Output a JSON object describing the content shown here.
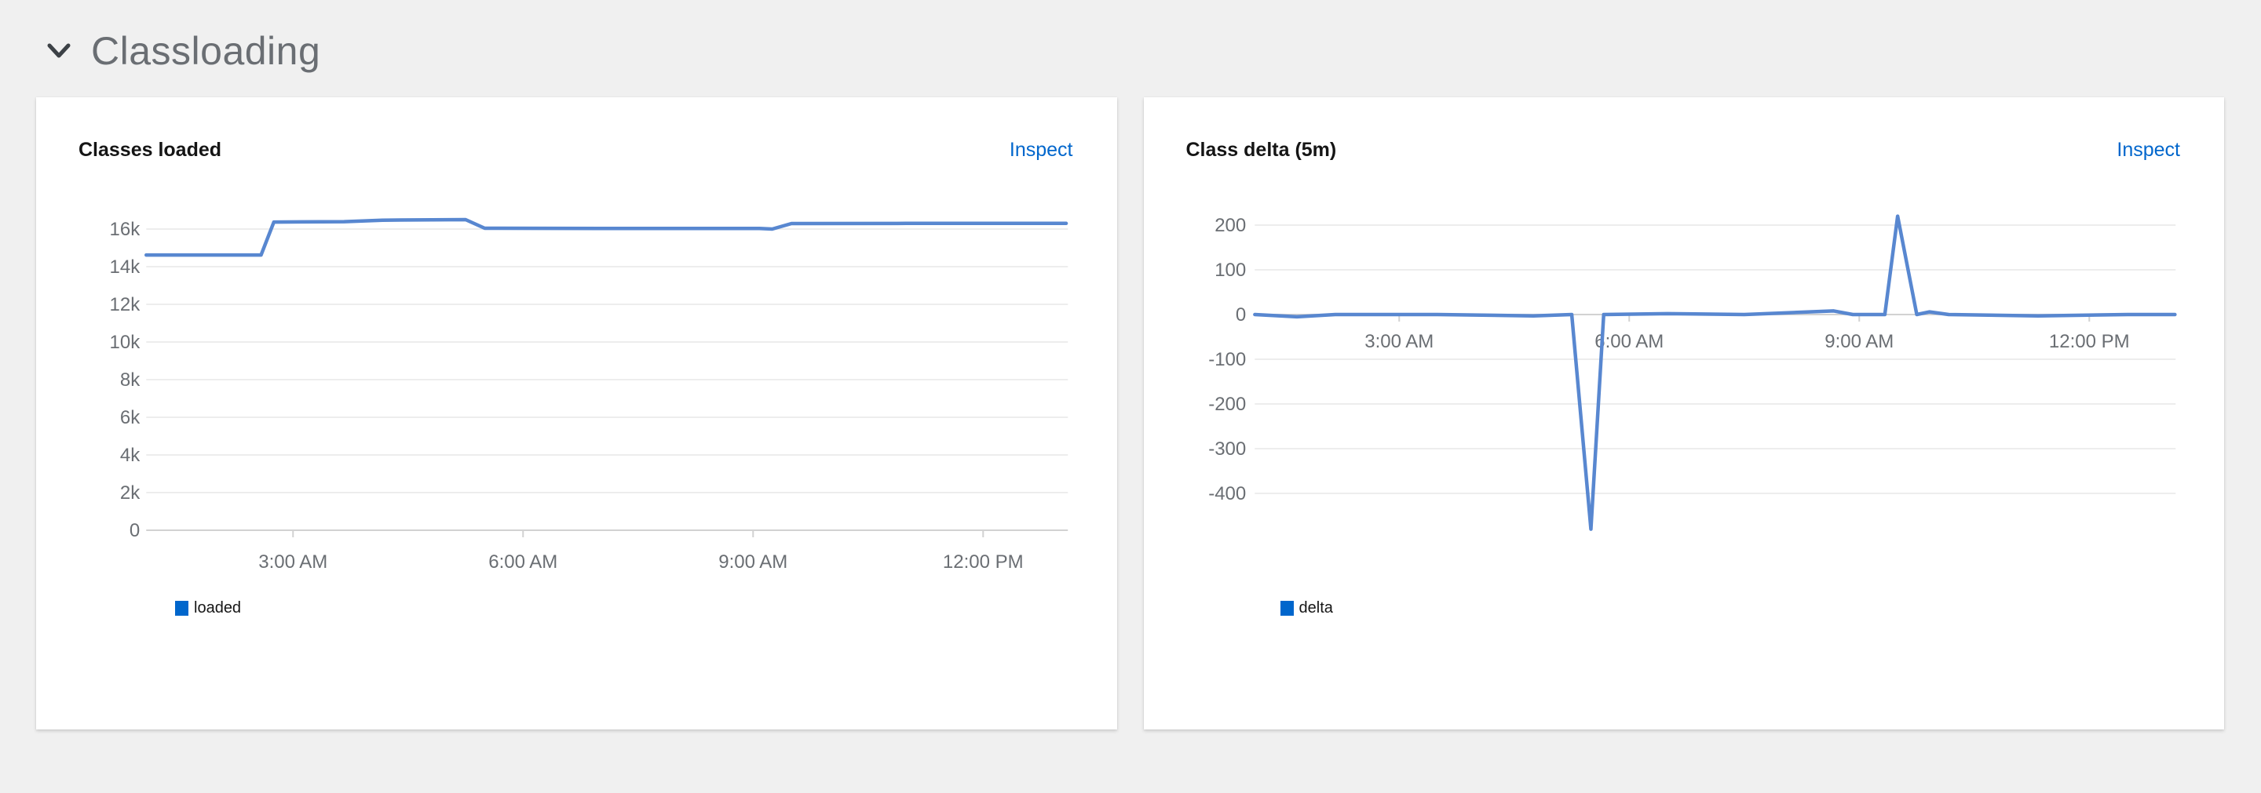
{
  "section": {
    "title": "Classloading",
    "state": "expanded"
  },
  "cards": [
    {
      "title": "Classes loaded",
      "inspect_label": "Inspect",
      "legend": [
        {
          "label": "loaded",
          "color": "#0066cc"
        }
      ]
    },
    {
      "title": "Class delta (5m)",
      "inspect_label": "Inspect",
      "legend": [
        {
          "label": "delta",
          "color": "#0066cc"
        }
      ]
    }
  ],
  "colors": {
    "page_background": "#f0f0f0",
    "card_background": "#ffffff",
    "accent_link": "#0066cc",
    "line_stroke": "#5887d0",
    "gridline": "#ededed",
    "axis_line": "#d2d2d2",
    "tick_text": "#6a6e73",
    "section_title_text": "#6a6e73",
    "chart_title_text": "#151515"
  },
  "chart_data": [
    {
      "type": "line",
      "title": "Classes loaded",
      "xlabel": "",
      "ylabel": "",
      "x_range": [
        "01:05",
        "13:05"
      ],
      "ylim": [
        0,
        16600
      ],
      "grid": "horizontal",
      "legend_position": "bottom-left",
      "yticks": [
        {
          "value": 16000,
          "label": "16k"
        },
        {
          "value": 14000,
          "label": "14k"
        },
        {
          "value": 12000,
          "label": "12k"
        },
        {
          "value": 10000,
          "label": "10k"
        },
        {
          "value": 8000,
          "label": "8k"
        },
        {
          "value": 6000,
          "label": "6k"
        },
        {
          "value": 4000,
          "label": "4k"
        },
        {
          "value": 2000,
          "label": "2k"
        },
        {
          "value": 0,
          "label": "0"
        }
      ],
      "xticks": [
        {
          "time": "03:00",
          "label": "3:00 AM"
        },
        {
          "time": "06:00",
          "label": "6:00 AM"
        },
        {
          "time": "09:00",
          "label": "9:00 AM"
        },
        {
          "time": "12:00",
          "label": "12:00 PM"
        }
      ],
      "series": [
        {
          "name": "loaded",
          "color": "#5887d0",
          "points": [
            [
              "01:05",
              14620
            ],
            [
              "02:35",
              14620
            ],
            [
              "02:45",
              16370
            ],
            [
              "03:40",
              16390
            ],
            [
              "04:10",
              16470
            ],
            [
              "05:15",
              16500
            ],
            [
              "05:30",
              16040
            ],
            [
              "07:30",
              16030
            ],
            [
              "09:05",
              16030
            ],
            [
              "09:15",
              16000
            ],
            [
              "09:30",
              16290
            ],
            [
              "11:00",
              16300
            ],
            [
              "13:05",
              16300
            ]
          ]
        }
      ]
    },
    {
      "type": "line",
      "title": "Class delta (5m)",
      "xlabel": "",
      "ylabel": "",
      "x_range": [
        "01:07",
        "13:07"
      ],
      "ylim": [
        -500,
        230
      ],
      "grid": "horizontal",
      "legend_position": "bottom-left",
      "yticks": [
        {
          "value": 200,
          "label": "200"
        },
        {
          "value": 100,
          "label": "100"
        },
        {
          "value": 0,
          "label": "0"
        },
        {
          "value": -100,
          "label": "-100"
        },
        {
          "value": -200,
          "label": "-200"
        },
        {
          "value": -300,
          "label": "-300"
        },
        {
          "value": -400,
          "label": "-400"
        }
      ],
      "xticks": [
        {
          "time": "03:00",
          "label": "3:00 AM"
        },
        {
          "time": "06:00",
          "label": "6:00 AM"
        },
        {
          "time": "09:00",
          "label": "9:00 AM"
        },
        {
          "time": "12:00",
          "label": "12:00 PM"
        }
      ],
      "series": [
        {
          "name": "delta",
          "color": "#5887d0",
          "points": [
            [
              "01:07",
              0
            ],
            [
              "01:40",
              -5
            ],
            [
              "02:10",
              0
            ],
            [
              "03:30",
              0
            ],
            [
              "04:45",
              -3
            ],
            [
              "05:15",
              0
            ],
            [
              "05:30",
              -480
            ],
            [
              "05:40",
              0
            ],
            [
              "06:30",
              2
            ],
            [
              "07:30",
              0
            ],
            [
              "08:40",
              8
            ],
            [
              "08:55",
              0
            ],
            [
              "09:20",
              0
            ],
            [
              "09:30",
              220
            ],
            [
              "09:45",
              0
            ],
            [
              "09:55",
              6
            ],
            [
              "10:10",
              0
            ],
            [
              "11:20",
              -3
            ],
            [
              "12:30",
              0
            ],
            [
              "13:07",
              0
            ]
          ]
        }
      ]
    }
  ]
}
